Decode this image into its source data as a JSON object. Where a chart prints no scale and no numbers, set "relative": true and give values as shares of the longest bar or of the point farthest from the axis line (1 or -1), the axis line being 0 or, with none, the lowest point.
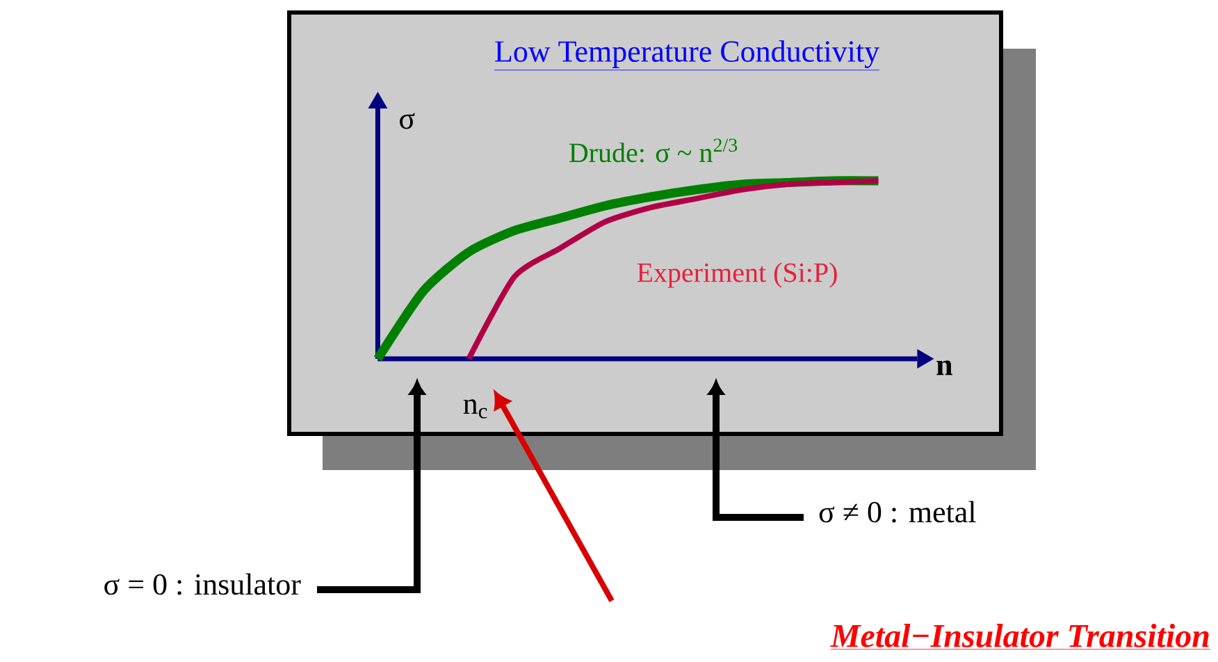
{
  "chart_data": {
    "type": "line",
    "relative": true,
    "title": "Low Temperature Conductivity",
    "xlabel": "n",
    "ylabel": "σ",
    "categories": [
      null,
      null,
      null,
      null,
      null,
      null,
      null,
      null,
      null,
      null,
      null,
      null
    ],
    "series": [
      {
        "name": "Drude: σ ~ n$^{2/3}$",
        "color": "#008000",
        "values": [
          0,
          0.38,
          0.6,
          0.72,
          0.79,
          0.86,
          0.91,
          0.95,
          0.98,
          0.99,
          1,
          1
        ]
      },
      {
        "name": "Experiment (Si:P)",
        "color": "#b00048",
        "values": [
          null,
          null,
          0,
          0.46,
          0.62,
          0.77,
          0.85,
          0.9,
          0.95,
          0.98,
          0.99,
          1
        ]
      }
    ],
    "annotations": [
      "n$_{c}$",
      "σ = 0 : insulator",
      "σ ≠ 0 : metal",
      "Metal−Insulator Transition"
    ]
  }
}
